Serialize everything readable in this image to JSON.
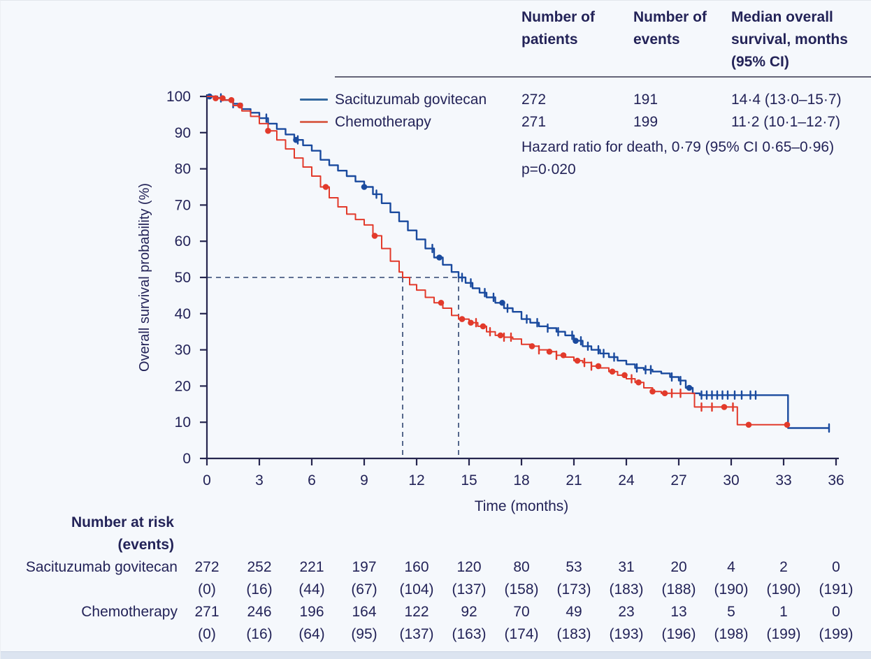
{
  "colors": {
    "background": "#f5f8fc",
    "text": "#232358",
    "axis": "#26264f",
    "sg_curve": "#1a4a9e",
    "chemo_curve": "#e23a2b",
    "sg_legend_line": "#33689f",
    "chemo_legend_line": "#d96450",
    "dashed_line": "#2e4470",
    "header_rule": "#34344c",
    "bottom_strip": "#dce4f0"
  },
  "summary_table": {
    "col_patients_header": "Number of\npatients",
    "col_events_header": "Number of\nevents",
    "col_median_header": "Median overall\nsurvival, months\n(95% CI)",
    "rows": [
      {
        "name": "Sacituzumab govitecan",
        "patients": "272",
        "events": "191",
        "median": "14·4 (13·0–15·7)"
      },
      {
        "name": "Chemotherapy",
        "patients": "271",
        "events": "199",
        "median": "11·2 (10·1–12·7)"
      }
    ],
    "hazard_ratio_text": "Hazard ratio for death, 0·79 (95% CI 0·65–0·96)",
    "p_value_text": "p=0·020"
  },
  "chart_data": {
    "type": "line",
    "subtype": "kaplan-meier-step",
    "title": "",
    "xlabel": "Time (months)",
    "ylabel": "Overall survival probability (%)",
    "xlim": [
      0,
      36
    ],
    "ylim": [
      0,
      100
    ],
    "x_ticks": [
      0,
      3,
      6,
      9,
      12,
      15,
      18,
      21,
      24,
      27,
      30,
      33,
      36
    ],
    "y_ticks": [
      0,
      10,
      20,
      30,
      40,
      50,
      60,
      70,
      80,
      90,
      100
    ],
    "grid": false,
    "legend_position": "top-left-inside",
    "median_reference": {
      "y_percent": 50,
      "sg_median_months": 14.4,
      "chemo_median_months": 11.2
    },
    "series": [
      {
        "name": "Sacituzumab govitecan",
        "color_key": "sg_curve",
        "points": [
          [
            0,
            100
          ],
          [
            0.6,
            99.6
          ],
          [
            1,
            99
          ],
          [
            1.5,
            98
          ],
          [
            2,
            96.5
          ],
          [
            2.5,
            95.5
          ],
          [
            3,
            94
          ],
          [
            3.5,
            92.5
          ],
          [
            4,
            91
          ],
          [
            4.5,
            89.5
          ],
          [
            5,
            88
          ],
          [
            5.5,
            86.5
          ],
          [
            6,
            85
          ],
          [
            6.5,
            82.5
          ],
          [
            7,
            81
          ],
          [
            7.5,
            79.5
          ],
          [
            8,
            78
          ],
          [
            8.5,
            76.5
          ],
          [
            9,
            75
          ],
          [
            9.5,
            73
          ],
          [
            10,
            70.5
          ],
          [
            10.5,
            68
          ],
          [
            11,
            65.5
          ],
          [
            11.5,
            63
          ],
          [
            12,
            60.5
          ],
          [
            12.5,
            58
          ],
          [
            13,
            55.5
          ],
          [
            13.5,
            53.5
          ],
          [
            14,
            51.5
          ],
          [
            14.4,
            50
          ],
          [
            14.8,
            48.5
          ],
          [
            15.2,
            47
          ],
          [
            15.6,
            45.8
          ],
          [
            16,
            44.5
          ],
          [
            16.5,
            43
          ],
          [
            17,
            41.5
          ],
          [
            17.5,
            40.5
          ],
          [
            18,
            38.5
          ],
          [
            18.5,
            37.5
          ],
          [
            19,
            36.5
          ],
          [
            19.5,
            36
          ],
          [
            20,
            35
          ],
          [
            20.5,
            34
          ],
          [
            21,
            32.5
          ],
          [
            21.5,
            31
          ],
          [
            22,
            30
          ],
          [
            22.5,
            29
          ],
          [
            23,
            28
          ],
          [
            23.5,
            27
          ],
          [
            24,
            26
          ],
          [
            24.5,
            25
          ],
          [
            25,
            24.5
          ],
          [
            25.5,
            24
          ],
          [
            26,
            23.5
          ],
          [
            26.5,
            22.5
          ],
          [
            27,
            21.5
          ],
          [
            27.4,
            19.5
          ],
          [
            27.8,
            18
          ],
          [
            28.2,
            17.5
          ],
          [
            33.25,
            17.5
          ],
          [
            33.25,
            8.4
          ],
          [
            35.6,
            8.4
          ]
        ],
        "censor_ticks": [
          0.8,
          1.5,
          3.4,
          5.2,
          9.7,
          12.9,
          14.6,
          15.1,
          15.9,
          16.4,
          17.2,
          18.3,
          18.9,
          19.5,
          20.1,
          20.9,
          21.4,
          21.8,
          22.4,
          22.7,
          23.3,
          24.6,
          25.1,
          25.4,
          26.6,
          27.1,
          28.3,
          28.6,
          28.9,
          29.2,
          29.5,
          29.8,
          30.2,
          30.6,
          31.1,
          31.4,
          35.6
        ],
        "censor_dots": [
          0.15,
          5.1,
          9.0,
          13.3,
          16.9,
          21.1,
          27.6
        ]
      },
      {
        "name": "Chemotherapy",
        "color_key": "chemo_curve",
        "points": [
          [
            0,
            100
          ],
          [
            0.5,
            99.5
          ],
          [
            1,
            99
          ],
          [
            1.5,
            97.5
          ],
          [
            2,
            96
          ],
          [
            2.5,
            94.5
          ],
          [
            3,
            92.5
          ],
          [
            3.5,
            90.5
          ],
          [
            4,
            88
          ],
          [
            4.5,
            85.5
          ],
          [
            5,
            83
          ],
          [
            5.5,
            80.5
          ],
          [
            6,
            78
          ],
          [
            6.5,
            75
          ],
          [
            7,
            72
          ],
          [
            7.5,
            69.5
          ],
          [
            8,
            67.5
          ],
          [
            8.5,
            66
          ],
          [
            9,
            64.5
          ],
          [
            9.5,
            61.5
          ],
          [
            10,
            58
          ],
          [
            10.5,
            54.5
          ],
          [
            11,
            51.5
          ],
          [
            11.2,
            50
          ],
          [
            11.6,
            48
          ],
          [
            12,
            46.5
          ],
          [
            12.5,
            44.5
          ],
          [
            13,
            43
          ],
          [
            13.5,
            41.5
          ],
          [
            14,
            39.5
          ],
          [
            14.4,
            38.5
          ],
          [
            15,
            37.5
          ],
          [
            15.5,
            36.5
          ],
          [
            16,
            35
          ],
          [
            16.5,
            34
          ],
          [
            17,
            33.5
          ],
          [
            17.5,
            33
          ],
          [
            18,
            31.5
          ],
          [
            18.5,
            31
          ],
          [
            19,
            30
          ],
          [
            19.5,
            29.5
          ],
          [
            20,
            28.5
          ],
          [
            20.5,
            28
          ],
          [
            21,
            27
          ],
          [
            21.5,
            26.5
          ],
          [
            22,
            25.5
          ],
          [
            22.5,
            25
          ],
          [
            23,
            24
          ],
          [
            23.5,
            23
          ],
          [
            24,
            22
          ],
          [
            24.5,
            21
          ],
          [
            25,
            19.5
          ],
          [
            25.5,
            18.5
          ],
          [
            26,
            18
          ],
          [
            27.9,
            18
          ],
          [
            27.9,
            14.2
          ],
          [
            30.35,
            14.2
          ],
          [
            30.35,
            9.3
          ],
          [
            33.2,
            9.3
          ]
        ],
        "censor_ticks": [
          15.4,
          16.2,
          17.0,
          17.4,
          19.0,
          20.0,
          21.6,
          22.0,
          24.3,
          26.6,
          27.1,
          28.3,
          28.9,
          30.1
        ],
        "censor_dots": [
          0.5,
          0.9,
          1.4,
          1.9,
          3.5,
          6.8,
          9.6,
          13.4,
          14.6,
          15.1,
          15.8,
          16.8,
          18.6,
          19.6,
          20.4,
          21.2,
          22.4,
          23.2,
          23.9,
          24.7,
          25.5,
          26.2,
          29.6,
          31.0,
          33.2
        ]
      }
    ]
  },
  "risk_table": {
    "header": "Number at risk\n(events)",
    "rows": [
      {
        "label": "Sacituzumab govitecan",
        "at_risk": [
          "272",
          "252",
          "221",
          "197",
          "160",
          "120",
          "80",
          "53",
          "31",
          "20",
          "4",
          "2",
          "0"
        ],
        "events": [
          "(0)",
          "(16)",
          "(44)",
          "(67)",
          "(104)",
          "(137)",
          "(158)",
          "(173)",
          "(183)",
          "(188)",
          "(190)",
          "(190)",
          "(191)"
        ]
      },
      {
        "label": "Chemotherapy",
        "at_risk": [
          "271",
          "246",
          "196",
          "164",
          "122",
          "92",
          "70",
          "49",
          "23",
          "13",
          "5",
          "1",
          "0"
        ],
        "events": [
          "(0)",
          "(16)",
          "(64)",
          "(95)",
          "(137)",
          "(163)",
          "(174)",
          "(183)",
          "(193)",
          "(196)",
          "(198)",
          "(199)",
          "(199)"
        ]
      }
    ]
  }
}
